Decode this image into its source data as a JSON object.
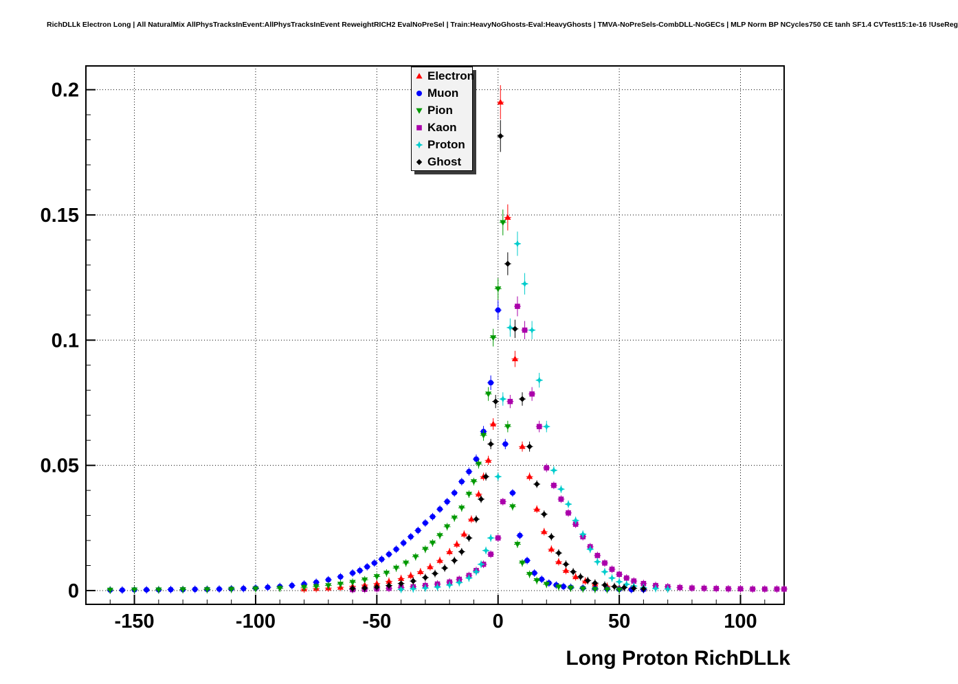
{
  "title": "RichDLLk Electron Long | All NaturalMix AllPhysTracksInEvent:AllPhysTracksInEvent ReweightRICH2 EvalNoPreSel | Train:HeavyNoGhosts-Eval:HeavyGhosts | TMVA-NoPreSels-CombDLL-NoGECs | MLP Norm BP NCycles750 CE tanh SF1.4 CVTest15:1e-16 !UseReg",
  "chart_data": {
    "type": "scatter",
    "title": "",
    "xlabel": "Long Proton RichDLLk",
    "ylabel": "",
    "xlim": [
      -170,
      118
    ],
    "ylim": [
      -0.0055,
      0.2095
    ],
    "xticks": [
      -150,
      -100,
      -50,
      0,
      50,
      100
    ],
    "xtick_labels": [
      "-150",
      "-100",
      "-50",
      "0",
      "50",
      "100"
    ],
    "yticks": [
      0,
      0.05,
      0.1,
      0.15,
      0.2
    ],
    "ytick_labels": [
      "0",
      "0.05",
      "0.1",
      "0.15",
      "0.2"
    ],
    "x_minor_step": 10,
    "y_minor_step": 0.01,
    "grid": true,
    "grid_style": "dotted",
    "legend_position": "top-center",
    "series": [
      {
        "name": "Electron",
        "color": "#ff0000",
        "marker": "triangle-up",
        "points": [
          [
            -80,
            0.0006
          ],
          [
            -75,
            0.0008
          ],
          [
            -70,
            0.001
          ],
          [
            -65,
            0.0013
          ],
          [
            -60,
            0.0017
          ],
          [
            -55,
            0.0022
          ],
          [
            -50,
            0.0028
          ],
          [
            -45,
            0.0037
          ],
          [
            -40,
            0.0048
          ],
          [
            -36,
            0.006
          ],
          [
            -32,
            0.0075
          ],
          [
            -28,
            0.0095
          ],
          [
            -24,
            0.012
          ],
          [
            -20,
            0.0155
          ],
          [
            -17,
            0.0185
          ],
          [
            -14,
            0.0225
          ],
          [
            -11,
            0.0285
          ],
          [
            -8,
            0.0385
          ],
          [
            -6,
            0.0455
          ],
          [
            -4,
            0.052
          ],
          [
            -2,
            0.0665
          ],
          [
            1,
            0.195
          ],
          [
            4,
            0.149
          ],
          [
            7,
            0.0925
          ],
          [
            10,
            0.0575
          ],
          [
            13,
            0.0455
          ],
          [
            16,
            0.0325
          ],
          [
            19,
            0.0235
          ],
          [
            22,
            0.0165
          ],
          [
            25,
            0.0115
          ],
          [
            28,
            0.008
          ],
          [
            32,
            0.0055
          ],
          [
            36,
            0.0038
          ],
          [
            40,
            0.0026
          ],
          [
            45,
            0.0017
          ],
          [
            50,
            0.0012
          ],
          [
            55,
            0.0008
          ],
          [
            60,
            0.0006
          ]
        ]
      },
      {
        "name": "Muon",
        "color": "#0000ff",
        "marker": "circle",
        "points": [
          [
            -160,
            0.0002
          ],
          [
            -155,
            0.0002
          ],
          [
            -150,
            0.0003
          ],
          [
            -145,
            0.0003
          ],
          [
            -140,
            0.0003
          ],
          [
            -135,
            0.0004
          ],
          [
            -130,
            0.0004
          ],
          [
            -125,
            0.0005
          ],
          [
            -120,
            0.0005
          ],
          [
            -115,
            0.0006
          ],
          [
            -110,
            0.0007
          ],
          [
            -105,
            0.0008
          ],
          [
            -100,
            0.001
          ],
          [
            -95,
            0.0013
          ],
          [
            -90,
            0.0016
          ],
          [
            -85,
            0.002
          ],
          [
            -80,
            0.0026
          ],
          [
            -75,
            0.0033
          ],
          [
            -70,
            0.0043
          ],
          [
            -65,
            0.0055
          ],
          [
            -60,
            0.007
          ],
          [
            -57,
            0.008
          ],
          [
            -54,
            0.0095
          ],
          [
            -51,
            0.011
          ],
          [
            -48,
            0.0125
          ],
          [
            -45,
            0.0145
          ],
          [
            -42,
            0.0165
          ],
          [
            -39,
            0.019
          ],
          [
            -36,
            0.0215
          ],
          [
            -33,
            0.024
          ],
          [
            -30,
            0.027
          ],
          [
            -27,
            0.0295
          ],
          [
            -24,
            0.0325
          ],
          [
            -21,
            0.0355
          ],
          [
            -18,
            0.039
          ],
          [
            -15,
            0.0435
          ],
          [
            -12,
            0.0475
          ],
          [
            -9,
            0.0525
          ],
          [
            -6,
            0.0635
          ],
          [
            -3,
            0.083
          ],
          [
            0,
            0.112
          ],
          [
            3,
            0.0585
          ],
          [
            6,
            0.039
          ],
          [
            9,
            0.022
          ],
          [
            12,
            0.012
          ],
          [
            15,
            0.007
          ],
          [
            18,
            0.0045
          ],
          [
            21,
            0.003
          ],
          [
            24,
            0.0022
          ],
          [
            27,
            0.0016
          ],
          [
            30,
            0.0013
          ],
          [
            35,
            0.001
          ],
          [
            40,
            0.0008
          ],
          [
            45,
            0.0006
          ],
          [
            50,
            0.0005
          ],
          [
            55,
            0.0004
          ],
          [
            60,
            0.0004
          ]
        ]
      },
      {
        "name": "Pion",
        "color": "#009900",
        "marker": "triangle-down",
        "points": [
          [
            -160,
            0.0002
          ],
          [
            -150,
            0.0003
          ],
          [
            -140,
            0.0003
          ],
          [
            -130,
            0.0004
          ],
          [
            -120,
            0.0004
          ],
          [
            -110,
            0.0005
          ],
          [
            -100,
            0.0007
          ],
          [
            -90,
            0.0009
          ],
          [
            -80,
            0.0013
          ],
          [
            -75,
            0.0016
          ],
          [
            -70,
            0.002
          ],
          [
            -65,
            0.0026
          ],
          [
            -60,
            0.0033
          ],
          [
            -55,
            0.0043
          ],
          [
            -50,
            0.0056
          ],
          [
            -46,
            0.007
          ],
          [
            -42,
            0.009
          ],
          [
            -38,
            0.011
          ],
          [
            -34,
            0.0135
          ],
          [
            -30,
            0.0165
          ],
          [
            -27,
            0.019
          ],
          [
            -24,
            0.022
          ],
          [
            -21,
            0.0255
          ],
          [
            -18,
            0.029
          ],
          [
            -15,
            0.033
          ],
          [
            -12,
            0.0385
          ],
          [
            -10,
            0.0435
          ],
          [
            -8,
            0.0505
          ],
          [
            -6,
            0.062
          ],
          [
            -4,
            0.0785
          ],
          [
            -2,
            0.101
          ],
          [
            0,
            0.1205
          ],
          [
            2,
            0.147
          ],
          [
            4,
            0.0655
          ],
          [
            6,
            0.0335
          ],
          [
            8,
            0.0185
          ],
          [
            10,
            0.011
          ],
          [
            13,
            0.0065
          ],
          [
            16,
            0.004
          ],
          [
            20,
            0.0025
          ],
          [
            25,
            0.0015
          ],
          [
            30,
            0.001
          ],
          [
            35,
            0.0007
          ],
          [
            40,
            0.0005
          ],
          [
            45,
            0.0004
          ],
          [
            50,
            0.0003
          ]
        ]
      },
      {
        "name": "Kaon",
        "color": "#aa00aa",
        "marker": "square",
        "points": [
          [
            -60,
            0.0004
          ],
          [
            -55,
            0.0005
          ],
          [
            -50,
            0.0007
          ],
          [
            -45,
            0.0009
          ],
          [
            -40,
            0.0012
          ],
          [
            -35,
            0.0015
          ],
          [
            -30,
            0.002
          ],
          [
            -25,
            0.0026
          ],
          [
            -20,
            0.0034
          ],
          [
            -16,
            0.0045
          ],
          [
            -12,
            0.006
          ],
          [
            -9,
            0.008
          ],
          [
            -6,
            0.0105
          ],
          [
            -3,
            0.0145
          ],
          [
            0,
            0.021
          ],
          [
            2,
            0.0355
          ],
          [
            5,
            0.0755
          ],
          [
            8,
            0.1135
          ],
          [
            11,
            0.104
          ],
          [
            14,
            0.0785
          ],
          [
            17,
            0.0655
          ],
          [
            20,
            0.049
          ],
          [
            23,
            0.042
          ],
          [
            26,
            0.0365
          ],
          [
            29,
            0.031
          ],
          [
            32,
            0.0265
          ],
          [
            35,
            0.0215
          ],
          [
            38,
            0.0175
          ],
          [
            41,
            0.014
          ],
          [
            44,
            0.011
          ],
          [
            47,
            0.0085
          ],
          [
            50,
            0.0065
          ],
          [
            53,
            0.005
          ],
          [
            56,
            0.0038
          ],
          [
            60,
            0.0028
          ],
          [
            65,
            0.002
          ],
          [
            70,
            0.0015
          ],
          [
            75,
            0.0012
          ],
          [
            80,
            0.001
          ],
          [
            85,
            0.0009
          ],
          [
            90,
            0.0008
          ],
          [
            95,
            0.0007
          ],
          [
            100,
            0.0007
          ],
          [
            105,
            0.0006
          ],
          [
            110,
            0.0006
          ],
          [
            115,
            0.0006
          ],
          [
            118,
            0.0006
          ]
        ]
      },
      {
        "name": "Proton",
        "color": "#00cccc",
        "marker": "star4",
        "points": [
          [
            -40,
            0.0005
          ],
          [
            -35,
            0.0007
          ],
          [
            -30,
            0.001
          ],
          [
            -25,
            0.0014
          ],
          [
            -20,
            0.0022
          ],
          [
            -16,
            0.0032
          ],
          [
            -12,
            0.005
          ],
          [
            -9,
            0.0075
          ],
          [
            -7,
            0.0105
          ],
          [
            -5,
            0.016
          ],
          [
            -3,
            0.021
          ],
          [
            0,
            0.0455
          ],
          [
            2,
            0.0765
          ],
          [
            5,
            0.105
          ],
          [
            8,
            0.1385
          ],
          [
            11,
            0.1225
          ],
          [
            14,
            0.104
          ],
          [
            17,
            0.084
          ],
          [
            20,
            0.0655
          ],
          [
            23,
            0.048
          ],
          [
            26,
            0.0405
          ],
          [
            29,
            0.0345
          ],
          [
            32,
            0.028
          ],
          [
            35,
            0.0225
          ],
          [
            38,
            0.0165
          ],
          [
            41,
            0.0115
          ],
          [
            44,
            0.0075
          ],
          [
            47,
            0.005
          ],
          [
            50,
            0.0035
          ],
          [
            53,
            0.0025
          ],
          [
            56,
            0.0018
          ],
          [
            60,
            0.0012
          ],
          [
            65,
            0.0008
          ],
          [
            70,
            0.0006
          ]
        ]
      },
      {
        "name": "Ghost",
        "color": "#000000",
        "marker": "diamond",
        "points": [
          [
            -60,
            0.0008
          ],
          [
            -55,
            0.001
          ],
          [
            -50,
            0.0014
          ],
          [
            -45,
            0.002
          ],
          [
            -40,
            0.0028
          ],
          [
            -35,
            0.0038
          ],
          [
            -30,
            0.0052
          ],
          [
            -26,
            0.0068
          ],
          [
            -22,
            0.009
          ],
          [
            -18,
            0.012
          ],
          [
            -15,
            0.0155
          ],
          [
            -12,
            0.021
          ],
          [
            -9,
            0.0285
          ],
          [
            -7,
            0.0365
          ],
          [
            -5,
            0.0455
          ],
          [
            -3,
            0.0585
          ],
          [
            -1,
            0.0755
          ],
          [
            1,
            0.1815
          ],
          [
            4,
            0.1305
          ],
          [
            7,
            0.1045
          ],
          [
            10,
            0.0765
          ],
          [
            13,
            0.0575
          ],
          [
            16,
            0.0425
          ],
          [
            19,
            0.0305
          ],
          [
            22,
            0.0215
          ],
          [
            25,
            0.015
          ],
          [
            28,
            0.0105
          ],
          [
            31,
            0.0075
          ],
          [
            34,
            0.0055
          ],
          [
            37,
            0.004
          ],
          [
            40,
            0.003
          ],
          [
            44,
            0.0022
          ],
          [
            48,
            0.0016
          ],
          [
            52,
            0.0012
          ],
          [
            56,
            0.0009
          ],
          [
            60,
            0.0007
          ]
        ]
      }
    ]
  }
}
